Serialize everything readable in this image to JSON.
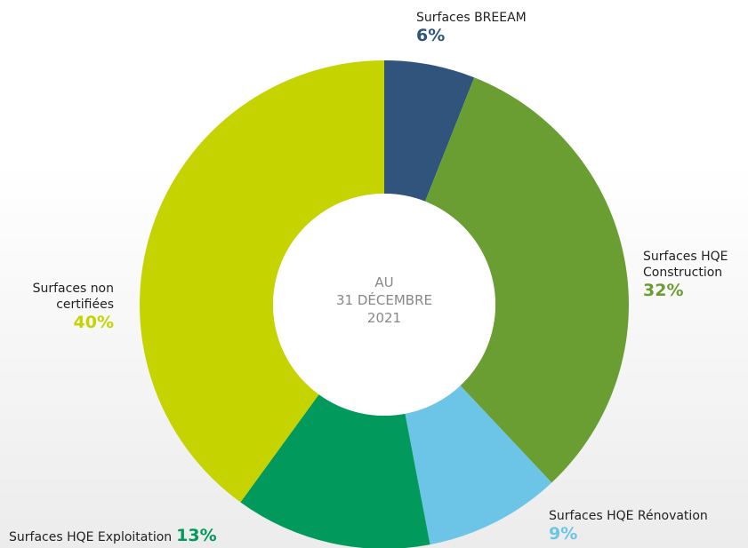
{
  "chart_data": {
    "type": "donut",
    "center_label": [
      "AU",
      "31 DÉCEMBRE",
      "2021"
    ],
    "series": [
      {
        "name": "Surfaces BREEAM",
        "color": "#30547c",
        "values": [
          6
        ],
        "value_labels": [
          "6%"
        ]
      },
      {
        "name": "Surfaces HQE Construction",
        "color": "#6b9e32",
        "values": [
          32
        ],
        "value_labels": [
          "32%"
        ]
      },
      {
        "name": "Surfaces HQE Rénovation",
        "color": "#6cc5e6",
        "values": [
          9
        ],
        "value_labels": [
          "9%"
        ]
      },
      {
        "name": "Surfaces HQE Exploitation",
        "color": "#019a5c",
        "values": [
          13
        ],
        "value_labels": [
          "13%"
        ]
      },
      {
        "name": "Surfaces non certifiées",
        "color": "#c5d400",
        "values": [
          40
        ],
        "value_labels": [
          "40%"
        ]
      }
    ]
  }
}
